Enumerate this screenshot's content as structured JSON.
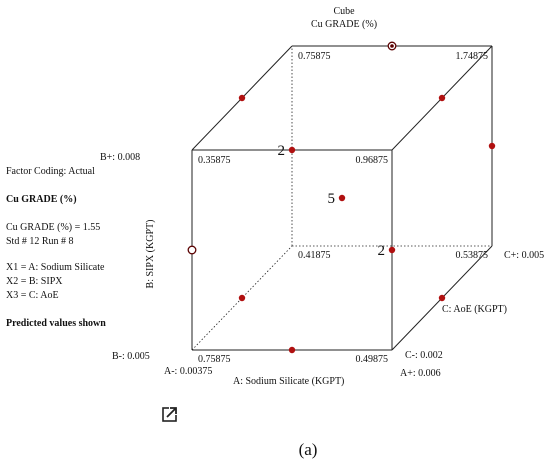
{
  "chart_data": {
    "type": "cube",
    "title": "Cube",
    "subtitle": "Cu GRADE (%)",
    "factors": {
      "A": {
        "label": "A: Sodium Silicate  (KGPT)",
        "low": "A-: 0.00375",
        "high": "A+: 0.006"
      },
      "B": {
        "label": "B: SIPX (KGPT)",
        "low": "B-: 0.005",
        "high": "B+: 0.008"
      },
      "C": {
        "label": "C: AoE (KGPT)",
        "low": "C-: 0.002",
        "high": "C+: 0.005"
      }
    },
    "corners": [
      {
        "a": -1,
        "b": -1,
        "c": -1,
        "value": "0.75875"
      },
      {
        "a": 1,
        "b": -1,
        "c": -1,
        "value": "0.49875"
      },
      {
        "a": -1,
        "b": 1,
        "c": -1,
        "value": "0.35875"
      },
      {
        "a": 1,
        "b": 1,
        "c": -1,
        "value": "0.96875"
      },
      {
        "a": -1,
        "b": -1,
        "c": 1,
        "value": "0.41875"
      },
      {
        "a": 1,
        "b": -1,
        "c": 1,
        "value": "0.53875"
      },
      {
        "a": -1,
        "b": 1,
        "c": 1,
        "value": "0.75875"
      },
      {
        "a": 1,
        "b": 1,
        "c": 1,
        "value": "1.74875"
      }
    ],
    "design_points": [
      {
        "a": 0,
        "b": 1,
        "c": 1,
        "style": "ring"
      },
      {
        "a": -1,
        "b": 0,
        "c": -1,
        "style": "ring"
      },
      {
        "a": 0,
        "b": 1,
        "c": -1,
        "style": "dot",
        "count": "2"
      },
      {
        "a": 1,
        "b": 0,
        "c": -1,
        "style": "dot",
        "count": "2"
      },
      {
        "a": 0,
        "b": 0,
        "c": 0,
        "style": "dot",
        "count": "5"
      },
      {
        "a": 0,
        "b": -1,
        "c": -1,
        "style": "dot"
      },
      {
        "a": -1,
        "b": -1,
        "c": 0,
        "style": "dot"
      },
      {
        "a": 1,
        "b": -1,
        "c": 0,
        "style": "dot"
      },
      {
        "a": -1,
        "b": 1,
        "c": 0,
        "style": "dot"
      },
      {
        "a": 1,
        "b": 1,
        "c": 0,
        "style": "dot"
      },
      {
        "a": 1,
        "b": 0,
        "c": 1,
        "style": "dot"
      }
    ],
    "point_color": "#b01010"
  },
  "sidebar": {
    "coding": "Factor Coding: Actual",
    "response": "Cu GRADE (%)",
    "value_line": "Cu GRADE (%) = 1.55",
    "std_run": "Std # 12 Run # 8",
    "x1": "X1 = A: Sodium Silicate",
    "x2": "X2 = B: SIPX",
    "x3": "X3 = C: AoE",
    "predicted": "Predicted values shown"
  },
  "caption": "(a)",
  "icons": {
    "expand": "expand-icon"
  }
}
